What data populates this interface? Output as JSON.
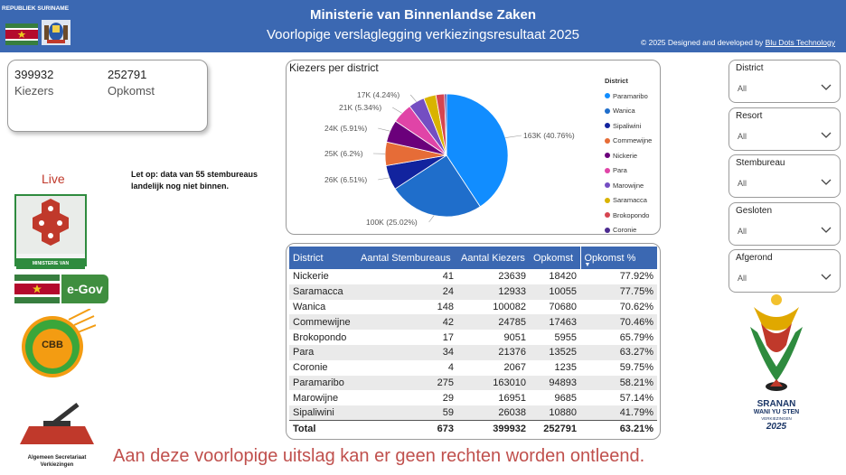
{
  "header": {
    "republic_label": "REPUBLIEK SURINAME",
    "title": "Ministerie van Binnenlandse Zaken",
    "subtitle": "Voorlopige verslaglegging verkiezingsresultaat 2025",
    "credit_prefix": "© 2025 Designed and developed by",
    "credit_company": "Blu Dots Technology"
  },
  "kpis": {
    "voters_value": "399932",
    "voters_label": "Kiezers",
    "turnout_value": "252791",
    "turnout_label": "Opkomst"
  },
  "note": "Let op: data van 55 stembureaus landelijk nog niet binnen.",
  "live_label": "Live",
  "chart_data": {
    "type": "pie",
    "title": "Kiezers per district",
    "legend_title": "District",
    "legend_position": "right",
    "slices": [
      {
        "name": "Paramaribo",
        "value": 163010,
        "label": "163K (40.76%)",
        "color": "#118dff"
      },
      {
        "name": "Wanica",
        "value": 100082,
        "label": "100K (25.02%)",
        "color": "#1f6ecb"
      },
      {
        "name": "Sipaliwini",
        "value": 26038,
        "label": "26K (6.51%)",
        "color": "#12239e"
      },
      {
        "name": "Commewijne",
        "value": 24785,
        "label": "25K (6.2%)",
        "color": "#e66c37"
      },
      {
        "name": "Nickerie",
        "value": 23639,
        "label": "24K (5.91%)",
        "color": "#6b007b"
      },
      {
        "name": "Para",
        "value": 21376,
        "label": "21K (5.34%)",
        "color": "#e044a7"
      },
      {
        "name": "Marowijne",
        "value": 16951,
        "label": "17K (4.24%)",
        "color": "#744ec2"
      },
      {
        "name": "Saramacca",
        "value": 12933,
        "label": "",
        "color": "#d9b300"
      },
      {
        "name": "Brokopondo",
        "value": 9051,
        "label": "",
        "color": "#d64550"
      },
      {
        "name": "Coronie",
        "value": 2067,
        "label": "",
        "color": "#4b2a8f"
      }
    ]
  },
  "table": {
    "headers": [
      "District",
      "Aantal Stembureaus",
      "Aantal Kiezers",
      "Opkomst",
      "Opkomst %"
    ],
    "rows": [
      [
        "Nickerie",
        "41",
        "23639",
        "18420",
        "77.92%"
      ],
      [
        "Saramacca",
        "24",
        "12933",
        "10055",
        "77.75%"
      ],
      [
        "Wanica",
        "148",
        "100082",
        "70680",
        "70.62%"
      ],
      [
        "Commewijne",
        "42",
        "24785",
        "17463",
        "70.46%"
      ],
      [
        "Brokopondo",
        "17",
        "9051",
        "5955",
        "65.79%"
      ],
      [
        "Para",
        "34",
        "21376",
        "13525",
        "63.27%"
      ],
      [
        "Coronie",
        "4",
        "2067",
        "1235",
        "59.75%"
      ],
      [
        "Paramaribo",
        "275",
        "163010",
        "94893",
        "58.21%"
      ],
      [
        "Marowijne",
        "29",
        "16951",
        "9685",
        "57.14%"
      ],
      [
        "Sipaliwini",
        "59",
        "26038",
        "10880",
        "41.79%"
      ]
    ],
    "total": [
      "Total",
      "673",
      "399932",
      "252791",
      "63.21%"
    ]
  },
  "filters": [
    {
      "label": "District",
      "value": "All"
    },
    {
      "label": "Resort",
      "value": "All"
    },
    {
      "label": "Stembureau",
      "value": "All"
    },
    {
      "label": "Gesloten",
      "value": "All"
    },
    {
      "label": "Afgerond",
      "value": "All"
    }
  ],
  "logos": {
    "ministry_caption": "MINISTERIE VAN BINNENLANDSE ZAKEN",
    "egov_label": "e-Gov",
    "cbb_label": "CBB",
    "asv_caption": "Algemeen Secretariaat Verkiezingen",
    "sranan_line1": "SRANAN",
    "sranan_line2": "WANI YU STEN",
    "sranan_line3": "VERKIEZINGEN",
    "sranan_year": "2025"
  },
  "disclaimer": "Aan deze voorlopige uitslag kan er geen rechten worden ontleend."
}
